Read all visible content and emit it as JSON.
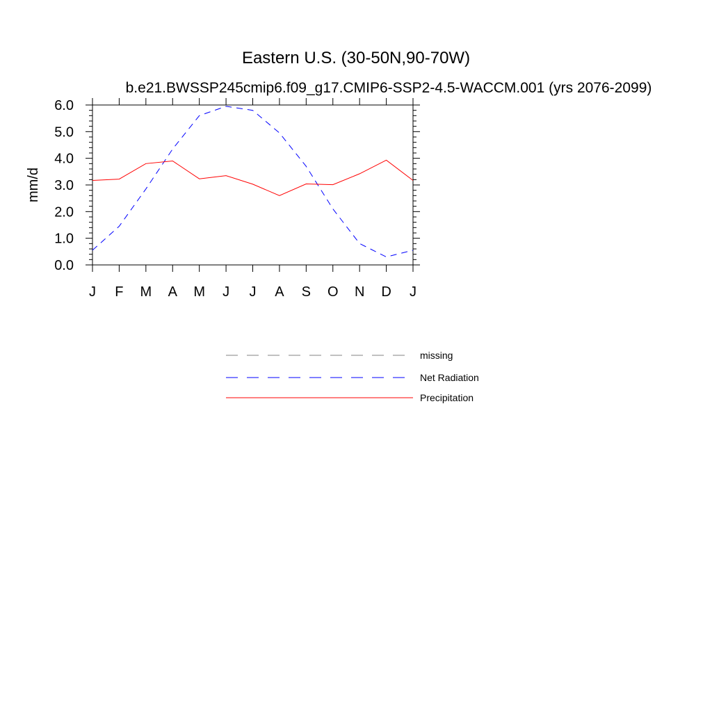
{
  "chart_data": {
    "type": "line",
    "title": "Eastern U.S. (30-50N,90-70W)",
    "subtitle": "b.e21.BWSSP245cmip6.f09_g17.CMIP6-SSP2-4.5-WACCM.001 (yrs 2076-2099)",
    "ylabel": "mm/d",
    "ylim": [
      0,
      6
    ],
    "yticks": [
      "0.0",
      "1.0",
      "2.0",
      "3.0",
      "4.0",
      "5.0",
      "6.0"
    ],
    "categories": [
      "J",
      "F",
      "M",
      "A",
      "M",
      "J",
      "J",
      "A",
      "S",
      "O",
      "N",
      "D",
      "J"
    ],
    "series": [
      {
        "name": "Net Radiation",
        "color": "#0000ff",
        "dash": "dashed",
        "values": [
          0.55,
          1.45,
          2.85,
          4.35,
          5.6,
          5.95,
          5.8,
          4.95,
          3.7,
          2.1,
          0.8,
          0.3,
          0.55
        ]
      },
      {
        "name": "Precipitation",
        "color": "#ff0000",
        "dash": "solid",
        "values": [
          3.17,
          3.22,
          3.8,
          3.9,
          3.23,
          3.35,
          3.03,
          2.6,
          3.04,
          3.01,
          3.42,
          3.93,
          3.17
        ]
      }
    ],
    "legend": {
      "placement": "below",
      "entries": [
        {
          "label": "missing",
          "color": "#808080",
          "dash": "dashed"
        },
        {
          "label": "Net Radiation",
          "color": "#0000ff",
          "dash": "dashed"
        },
        {
          "label": "Precipitation",
          "color": "#ff0000",
          "dash": "solid"
        }
      ]
    },
    "grid": false
  }
}
